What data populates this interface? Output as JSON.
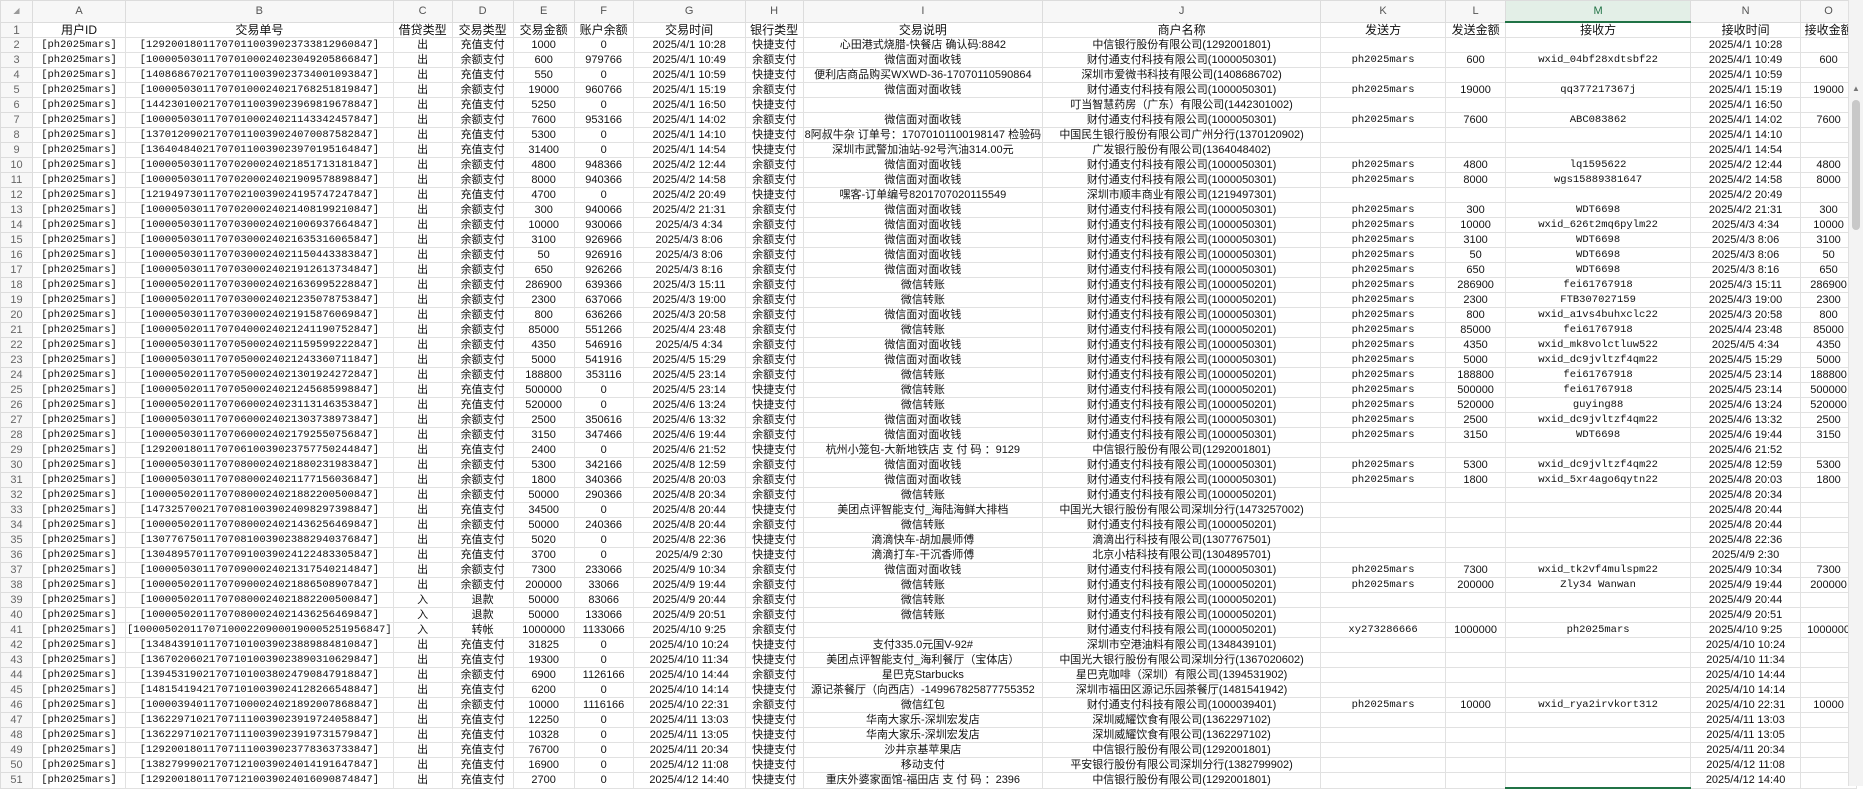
{
  "corner_icon": "select-all-triangle-icon",
  "columns": [
    "A",
    "B",
    "C",
    "D",
    "E",
    "F",
    "G",
    "H",
    "I",
    "J",
    "K",
    "L",
    "M",
    "N",
    "O"
  ],
  "selected_column": "M",
  "accent_color": "#217346",
  "headers": [
    "用户ID",
    "交易单号",
    "借贷类型",
    "交易类型",
    "交易金额",
    "账户余额",
    "交易时间",
    "银行类型",
    "交易说明",
    "商户名称",
    "发送方",
    "发送金额",
    "接收方",
    "接收时间",
    "接收金额"
  ],
  "rows": [
    [
      "[ph2025mars]",
      "[129200180117070110039023733812960847]",
      "出",
      "充值支付",
      "1000",
      "0",
      "2025/4/1 10:28",
      "快捷支付",
      "心田港式烧腊-快餐店 确认码:8842",
      "中信银行股份有限公司(1292001801)",
      "",
      "",
      "",
      "2025/4/1 10:28",
      ""
    ],
    [
      "[ph2025mars]",
      "[100005030117070100024023049205866847]",
      "出",
      "余额支付",
      "600",
      "979766",
      "2025/4/1 10:49",
      "余额支付",
      "微信面对面收钱",
      "财付通支付科技有限公司(1000050301)",
      "ph2025mars",
      "600",
      "wxid_04bf28xdtsbf22",
      "2025/4/1 10:49",
      "600"
    ],
    [
      "[ph2025mars]",
      "[140868670217070110039023734001093847]",
      "出",
      "充值支付",
      "550",
      "0",
      "2025/4/1 10:59",
      "快捷支付",
      "便利店商品购买WXWD-36-17070110590864",
      "深圳市爱微书科技有限公司(1408686702)",
      "",
      "",
      "",
      "2025/4/1 10:59",
      ""
    ],
    [
      "[ph2025mars]",
      "[100005030117070100024021768251819847]",
      "出",
      "余额支付",
      "19000",
      "960766",
      "2025/4/1 15:19",
      "余额支付",
      "微信面对面收钱",
      "财付通支付科技有限公司(1000050301)",
      "ph2025mars",
      "19000",
      "qq377217367j",
      "2025/4/1 15:19",
      "19000"
    ],
    [
      "[ph2025mars]",
      "[144230100217070110039023969819678847]",
      "出",
      "充值支付",
      "5250",
      "0",
      "2025/4/1 16:50",
      "快捷支付",
      "",
      "叮当智慧药房（广东）有限公司(1442301002)",
      "",
      "",
      "",
      "2025/4/1 16:50",
      ""
    ],
    [
      "[ph2025mars]",
      "[100005030117070100024021143342457847]",
      "出",
      "余额支付",
      "7600",
      "953166",
      "2025/4/1 14:02",
      "余额支付",
      "微信面对面收钱",
      "财付通支付科技有限公司(1000050301)",
      "ph2025mars",
      "7600",
      "ABC083862",
      "2025/4/1 14:02",
      "7600"
    ],
    [
      "[ph2025mars]",
      "[137012090217070110039024070087582847]",
      "出",
      "充值支付",
      "5300",
      "0",
      "2025/4/1 14:10",
      "快捷支付",
      "8阿叔牛杂 订单号：17070101100198147 检验码",
      "中国民生银行股份有限公司广州分行(1370120902)",
      "",
      "",
      "",
      "2025/4/1 14:10",
      ""
    ],
    [
      "[ph2025mars]",
      "[136404840217070110039023970195164847]",
      "出",
      "充值支付",
      "31400",
      "0",
      "2025/4/1 14:54",
      "快捷支付",
      "深圳市武警加油站-92号汽油314.00元",
      "广发银行股份有限公司(1364048402)",
      "",
      "",
      "",
      "2025/4/1 14:54",
      ""
    ],
    [
      "[ph2025mars]",
      "[100005030117070200024021851713181847]",
      "出",
      "余额支付",
      "4800",
      "948366",
      "2025/4/2 12:44",
      "余额支付",
      "微信面对面收钱",
      "财付通支付科技有限公司(1000050301)",
      "ph2025mars",
      "4800",
      "lq1595622",
      "2025/4/2 12:44",
      "4800"
    ],
    [
      "[ph2025mars]",
      "[100005030117070200024021909578898847]",
      "出",
      "余额支付",
      "8000",
      "940366",
      "2025/4/2 14:58",
      "余额支付",
      "微信面对面收钱",
      "财付通支付科技有限公司(1000050301)",
      "ph2025mars",
      "8000",
      "wgs15889381647",
      "2025/4/2 14:58",
      "8000"
    ],
    [
      "[ph2025mars]",
      "[121949730117070210039024195747247847]",
      "出",
      "充值支付",
      "4700",
      "0",
      "2025/4/2 20:49",
      "快捷支付",
      "嘿客-订单编号8201707020115549",
      "深圳市顺丰商业有限公司(1219497301)",
      "",
      "",
      "",
      "2025/4/2 20:49",
      ""
    ],
    [
      "[ph2025mars]",
      "[100005030117070200024021408199210847]",
      "出",
      "余额支付",
      "300",
      "940066",
      "2025/4/2 21:31",
      "余额支付",
      "微信面对面收钱",
      "财付通支付科技有限公司(1000050301)",
      "ph2025mars",
      "300",
      "WDT6698",
      "2025/4/2 21:31",
      "300"
    ],
    [
      "[ph2025mars]",
      "[100005030117070300024021006937664847]",
      "出",
      "余额支付",
      "10000",
      "930066",
      "2025/4/3 4:34",
      "余额支付",
      "微信面对面收钱",
      "财付通支付科技有限公司(1000050301)",
      "ph2025mars",
      "10000",
      "wxid_626t2mq6pylm22",
      "2025/4/3 4:34",
      "10000"
    ],
    [
      "[ph2025mars]",
      "[100005030117070300024021635316065847]",
      "出",
      "余额支付",
      "3100",
      "926966",
      "2025/4/3 8:06",
      "余额支付",
      "微信面对面收钱",
      "财付通支付科技有限公司(1000050301)",
      "ph2025mars",
      "3100",
      "WDT6698",
      "2025/4/3 8:06",
      "3100"
    ],
    [
      "[ph2025mars]",
      "[100005030117070300024021150443383847]",
      "出",
      "余额支付",
      "50",
      "926916",
      "2025/4/3 8:06",
      "余额支付",
      "微信面对面收钱",
      "财付通支付科技有限公司(1000050301)",
      "ph2025mars",
      "50",
      "WDT6698",
      "2025/4/3 8:06",
      "50"
    ],
    [
      "[ph2025mars]",
      "[100005030117070300024021912613734847]",
      "出",
      "余额支付",
      "650",
      "926266",
      "2025/4/3 8:16",
      "余额支付",
      "微信面对面收钱",
      "财付通支付科技有限公司(1000050301)",
      "ph2025mars",
      "650",
      "WDT6698",
      "2025/4/3 8:16",
      "650"
    ],
    [
      "[ph2025mars]",
      "[100005020117070300024021636995228847]",
      "出",
      "余额支付",
      "286900",
      "639366",
      "2025/4/3 15:11",
      "余额支付",
      "微信转账",
      "财付通支付科技有限公司(1000050201)",
      "ph2025mars",
      "286900",
      "fei61767918",
      "2025/4/3 15:11",
      "286900"
    ],
    [
      "[ph2025mars]",
      "[100005020117070300024021235078753847]",
      "出",
      "余额支付",
      "2300",
      "637066",
      "2025/4/3 19:00",
      "余额支付",
      "微信转账",
      "财付通支付科技有限公司(1000050201)",
      "ph2025mars",
      "2300",
      "FTB307027159",
      "2025/4/3 19:00",
      "2300"
    ],
    [
      "[ph2025mars]",
      "[100005030117070300024021915876069847]",
      "出",
      "余额支付",
      "800",
      "636266",
      "2025/4/3 20:58",
      "余额支付",
      "微信面对面收钱",
      "财付通支付科技有限公司(1000050301)",
      "ph2025mars",
      "800",
      "wxid_a1vs4buhxclc22",
      "2025/4/3 20:58",
      "800"
    ],
    [
      "[ph2025mars]",
      "[100005020117070400024021241190752847]",
      "出",
      "余额支付",
      "85000",
      "551266",
      "2025/4/4 23:48",
      "余额支付",
      "微信转账",
      "财付通支付科技有限公司(1000050201)",
      "ph2025mars",
      "85000",
      "fei61767918",
      "2025/4/4 23:48",
      "85000"
    ],
    [
      "[ph2025mars]",
      "[100005030117070500024021159599222847]",
      "出",
      "余额支付",
      "4350",
      "546916",
      "2025/4/5 4:34",
      "余额支付",
      "微信面对面收钱",
      "财付通支付科技有限公司(1000050301)",
      "ph2025mars",
      "4350",
      "wxid_mk8volctluw522",
      "2025/4/5 4:34",
      "4350"
    ],
    [
      "[ph2025mars]",
      "[100005030117070500024021243360711847]",
      "出",
      "余额支付",
      "5000",
      "541916",
      "2025/4/5 15:29",
      "余额支付",
      "微信面对面收钱",
      "财付通支付科技有限公司(1000050301)",
      "ph2025mars",
      "5000",
      "wxid_dc9jvltzf4qm22",
      "2025/4/5 15:29",
      "5000"
    ],
    [
      "[ph2025mars]",
      "[100005020117070500024021301924272847]",
      "出",
      "余额支付",
      "188800",
      "353116",
      "2025/4/5 23:14",
      "余额支付",
      "微信转账",
      "财付通支付科技有限公司(1000050201)",
      "ph2025mars",
      "188800",
      "fei61767918",
      "2025/4/5 23:14",
      "188800"
    ],
    [
      "[ph2025mars]",
      "[100005020117070500024021245685998847]",
      "出",
      "充值支付",
      "500000",
      "0",
      "2025/4/5 23:14",
      "快捷支付",
      "微信转账",
      "财付通支付科技有限公司(1000050201)",
      "ph2025mars",
      "500000",
      "fei61767918",
      "2025/4/5 23:14",
      "500000"
    ],
    [
      "[ph2025mars]",
      "[100005020117070600024023113146353847]",
      "出",
      "充值支付",
      "520000",
      "0",
      "2025/4/6 13:24",
      "快捷支付",
      "微信转账",
      "财付通支付科技有限公司(1000050201)",
      "ph2025mars",
      "520000",
      "guying88",
      "2025/4/6 13:24",
      "520000"
    ],
    [
      "[ph2025mars]",
      "[100005030117070600024021303738973847]",
      "出",
      "余额支付",
      "2500",
      "350616",
      "2025/4/6 13:32",
      "余额支付",
      "微信面对面收钱",
      "财付通支付科技有限公司(1000050301)",
      "ph2025mars",
      "2500",
      "wxid_dc9jvltzf4qm22",
      "2025/4/6 13:32",
      "2500"
    ],
    [
      "[ph2025mars]",
      "[100005030117070600024021792550756847]",
      "出",
      "余额支付",
      "3150",
      "347466",
      "2025/4/6 19:44",
      "余额支付",
      "微信面对面收钱",
      "财付通支付科技有限公司(1000050301)",
      "ph2025mars",
      "3150",
      "WDT6698",
      "2025/4/6 19:44",
      "3150"
    ],
    [
      "[ph2025mars]",
      "[129200180117070610039023757750244847]",
      "出",
      "充值支付",
      "2400",
      "0",
      "2025/4/6 21:52",
      "快捷支付",
      "杭州小笼包-大新地铁店 支 付 码 ：9129",
      "中信银行股份有限公司(1292001801)",
      "",
      "",
      "",
      "2025/4/6 21:52",
      ""
    ],
    [
      "[ph2025mars]",
      "[100005030117070800024021880231983847]",
      "出",
      "余额支付",
      "5300",
      "342166",
      "2025/4/8 12:59",
      "余额支付",
      "微信面对面收钱",
      "财付通支付科技有限公司(1000050301)",
      "ph2025mars",
      "5300",
      "wxid_dc9jvltzf4qm22",
      "2025/4/8 12:59",
      "5300"
    ],
    [
      "[ph2025mars]",
      "[100005030117070800024021177156036847]",
      "出",
      "余额支付",
      "1800",
      "340366",
      "2025/4/8 20:03",
      "余额支付",
      "微信面对面收钱",
      "财付通支付科技有限公司(1000050301)",
      "ph2025mars",
      "1800",
      "wxid_5xr4ago6qytn22",
      "2025/4/8 20:03",
      "1800"
    ],
    [
      "[ph2025mars]",
      "[100005020117070800024021882200500847]",
      "出",
      "余额支付",
      "50000",
      "290366",
      "2025/4/8 20:34",
      "余额支付",
      "微信转账",
      "财付通支付科技有限公司(1000050201)",
      "",
      "",
      "",
      "2025/4/8 20:34",
      ""
    ],
    [
      "[ph2025mars]",
      "[147325700217070810039024098297398847]",
      "出",
      "充值支付",
      "34500",
      "0",
      "2025/4/8 20:44",
      "快捷支付",
      "美团点评智能支付_海陆海鲜大排档",
      "中国光大银行股份有限公司深圳分行(1473257002)",
      "",
      "",
      "",
      "2025/4/8 20:44",
      ""
    ],
    [
      "[ph2025mars]",
      "[100005020117070800024021436256469847]",
      "出",
      "余额支付",
      "50000",
      "240366",
      "2025/4/8 20:44",
      "余额支付",
      "微信转账",
      "财付通支付科技有限公司(1000050201)",
      "",
      "",
      "",
      "2025/4/8 20:44",
      ""
    ],
    [
      "[ph2025mars]",
      "[130776750117070810039023882940376847]",
      "出",
      "充值支付",
      "5020",
      "0",
      "2025/4/8 22:36",
      "快捷支付",
      "滴滴快车-胡加晨师傅",
      "滴滴出行科技有限公司(1307767501)",
      "",
      "",
      "",
      "2025/4/8 22:36",
      ""
    ],
    [
      "[ph2025mars]",
      "[130489570117070910039024122483305847]",
      "出",
      "充值支付",
      "3700",
      "0",
      "2025/4/9 2:30",
      "快捷支付",
      "滴滴打车-干沉香师傅",
      "北京小桔科技有限公司(1304895701)",
      "",
      "",
      "",
      "2025/4/9 2:30",
      ""
    ],
    [
      "[ph2025mars]",
      "[100005030117070900024021317540214847]",
      "出",
      "余额支付",
      "7300",
      "233066",
      "2025/4/9 10:34",
      "余额支付",
      "微信面对面收钱",
      "财付通支付科技有限公司(1000050301)",
      "ph2025mars",
      "7300",
      "wxid_tk2vf4mulspm22",
      "2025/4/9 10:34",
      "7300"
    ],
    [
      "[ph2025mars]",
      "[100005020117070900024021886508907847]",
      "出",
      "余额支付",
      "200000",
      "33066",
      "2025/4/9 19:44",
      "余额支付",
      "微信转账",
      "财付通支付科技有限公司(1000050201)",
      "ph2025mars",
      "200000",
      "Zly34 Wanwan",
      "2025/4/9 19:44",
      "200000"
    ],
    [
      "[ph2025mars]",
      "[100005020117070800024021882200500847]",
      "入",
      "退款",
      "50000",
      "83066",
      "2025/4/9 20:44",
      "余额支付",
      "微信转账",
      "财付通支付科技有限公司(1000050201)",
      "",
      "",
      "",
      "2025/4/9 20:44",
      ""
    ],
    [
      "[ph2025mars]",
      "[100005020117070800024021436256469847]",
      "入",
      "退款",
      "50000",
      "133066",
      "2025/4/9 20:51",
      "余额支付",
      "微信转账",
      "财付通支付科技有限公司(1000050201)",
      "",
      "",
      "",
      "2025/4/9 20:51",
      ""
    ],
    [
      "[ph2025mars]",
      "[1000050201170710002209000190005251956847]",
      "入",
      "转帐",
      "1000000",
      "1133066",
      "2025/4/10 9:25",
      "余额支付",
      "",
      "财付通支付科技有限公司(1000050201)",
      "xy273286666",
      "1000000",
      "ph2025mars",
      "2025/4/10 9:25",
      "1000000"
    ],
    [
      "[ph2025mars]",
      "[134843910117071010039023889884810847]",
      "出",
      "充值支付",
      "31825",
      "0",
      "2025/4/10 10:24",
      "快捷支付",
      "支付335.0元国V-92#",
      "深圳市空港油料有限公司(1348439101)",
      "",
      "",
      "",
      "2025/4/10 10:24",
      ""
    ],
    [
      "[ph2025mars]",
      "[136702060217071010039023890310629847]",
      "出",
      "充值支付",
      "19300",
      "0",
      "2025/4/10 11:34",
      "快捷支付",
      "美团点评智能支付_海利餐厅（宝体店）",
      "中国光大银行股份有限公司深圳分行(1367020602)",
      "",
      "",
      "",
      "2025/4/10 11:34",
      ""
    ],
    [
      "[ph2025mars]",
      "[139453190217071010038024790847918847]",
      "出",
      "余额支付",
      "6900",
      "1126166",
      "2025/4/10 14:44",
      "余额支付",
      "星巴克Starbucks",
      "星巴克咖啡（深圳）有限公司(1394531902)",
      "",
      "",
      "",
      "2025/4/10 14:44",
      ""
    ],
    [
      "[ph2025mars]",
      "[148154194217071010039024128266548847]",
      "出",
      "充值支付",
      "6200",
      "0",
      "2025/4/10 14:14",
      "快捷支付",
      "源记茶餐厅（向西店）-149967825877755352",
      "深圳市福田区源记乐园茶餐厅(1481541942)",
      "",
      "",
      "",
      "2025/4/10 14:14",
      ""
    ],
    [
      "[ph2025mars]",
      "[100003940117071000024021892007868847]",
      "出",
      "余额支付",
      "10000",
      "1116166",
      "2025/4/10 22:31",
      "余额支付",
      "微信红包",
      "财付通支付科技有限公司(1000039401)",
      "ph2025mars",
      "10000",
      "wxid_rya2irvkort312",
      "2025/4/10 22:31",
      "10000"
    ],
    [
      "[ph2025mars]",
      "[136229710217071110039023919724058847]",
      "出",
      "充值支付",
      "12250",
      "0",
      "2025/4/11 13:03",
      "快捷支付",
      "华南大家乐-深圳宏发店",
      "深圳威耀饮食有限公司(1362297102)",
      "",
      "",
      "",
      "2025/4/11 13:03",
      ""
    ],
    [
      "[ph2025mars]",
      "[136229710217071110039023919731579847]",
      "出",
      "充值支付",
      "10328",
      "0",
      "2025/4/11 13:05",
      "快捷支付",
      "华南大家乐-深圳宏发店",
      "深圳威耀饮食有限公司(1362297102)",
      "",
      "",
      "",
      "2025/4/11 13:05",
      ""
    ],
    [
      "[ph2025mars]",
      "[129200180117071110039023778363733847]",
      "出",
      "充值支付",
      "76700",
      "0",
      "2025/4/11 20:34",
      "快捷支付",
      "沙井京基苹果店",
      "中信银行股份有限公司(1292001801)",
      "",
      "",
      "",
      "2025/4/11 20:34",
      ""
    ],
    [
      "[ph2025mars]",
      "[138279990217071210039024014191647847]",
      "出",
      "充值支付",
      "16900",
      "0",
      "2025/4/12 11:08",
      "快捷支付",
      "移动支付",
      "平安银行股份有限公司深圳分行(1382799902)",
      "",
      "",
      "",
      "2025/4/12 11:08",
      ""
    ],
    [
      "[ph2025mars]",
      "[129200180117071210039024016090874847]",
      "出",
      "充值支付",
      "2700",
      "0",
      "2025/4/12 14:40",
      "快捷支付",
      "重庆外婆家面馆-福田店 支 付 码 ：2396",
      "中信银行股份有限公司(1292001801)",
      "",
      "",
      "",
      "2025/4/12 14:40",
      ""
    ]
  ]
}
